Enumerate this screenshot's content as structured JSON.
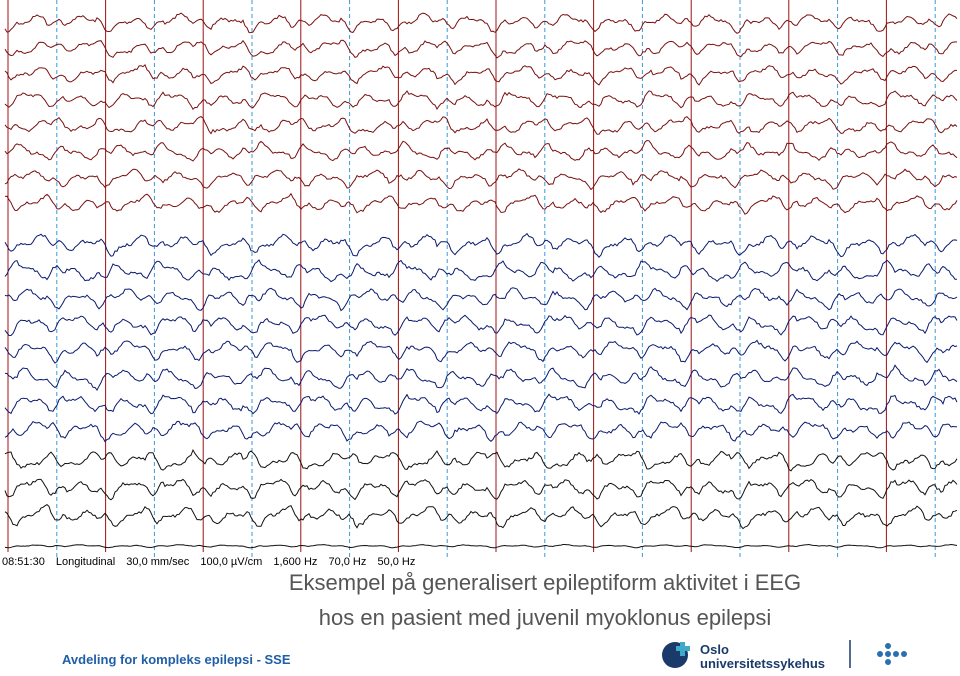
{
  "status": [
    "08:51:30",
    "Longitudinal",
    "30,0 mm/sec",
    "100,0 µV/cm",
    "1,600 Hz",
    "70,0 Hz",
    "50,0 Hz"
  ],
  "title": [
    "Eksempel på generalisert epileptiform aktivitet i EEG",
    "hos en pasient med juvenil myoklonus epilepsi"
  ],
  "footer": "Avdeling for kompleks epilepsi - SSE",
  "logo": [
    "Oslo",
    "universitetssykehus"
  ]
}
